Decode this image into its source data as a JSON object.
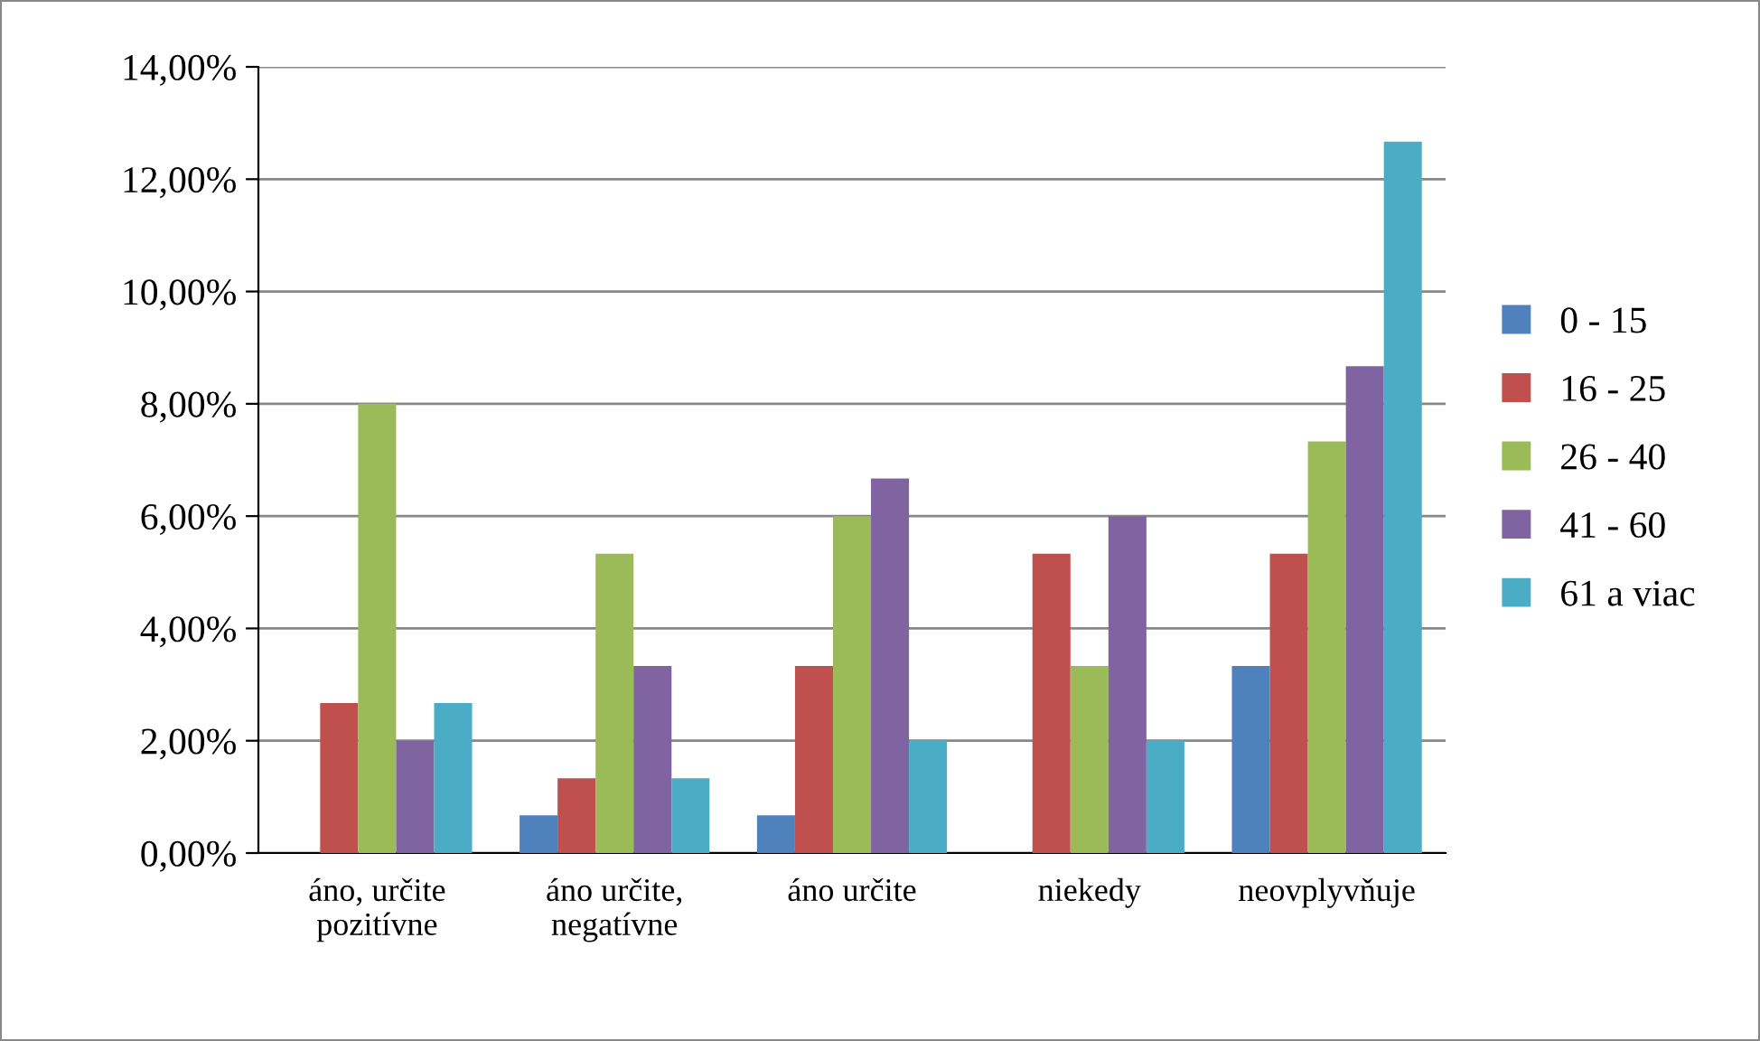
{
  "chart_data": {
    "type": "bar",
    "categories": [
      "áno, určite\npozitívne",
      "áno určite,\nnegatívne",
      "áno určite",
      "niekedy",
      "neovplyvňuje"
    ],
    "series": [
      {
        "name": "0 - 15",
        "color": "#4f81bd",
        "values": [
          0,
          0.67,
          0.67,
          0,
          3.33
        ]
      },
      {
        "name": "16 - 25",
        "color": "#c0504d",
        "values": [
          2.67,
          1.33,
          3.33,
          5.33,
          5.33
        ]
      },
      {
        "name": "26 - 40",
        "color": "#9bbb59",
        "values": [
          8.0,
          5.33,
          6.0,
          3.33,
          7.33
        ]
      },
      {
        "name": "41 - 60",
        "color": "#8064a2",
        "values": [
          2.0,
          3.33,
          6.67,
          6.0,
          8.67
        ]
      },
      {
        "name": "61 a viac",
        "color": "#4bacc6",
        "values": [
          2.67,
          1.33,
          2.0,
          2.0,
          12.67
        ]
      }
    ],
    "ylim": [
      0,
      14
    ],
    "yticks": [
      {
        "value": 0,
        "label": "0,00%"
      },
      {
        "value": 2,
        "label": "2,00%"
      },
      {
        "value": 4,
        "label": "4,00%"
      },
      {
        "value": 6,
        "label": "6,00%"
      },
      {
        "value": 8,
        "label": "8,00%"
      },
      {
        "value": 10,
        "label": "10,00%"
      },
      {
        "value": 12,
        "label": "12,00%"
      },
      {
        "value": 14,
        "label": "14,00%"
      }
    ],
    "grid": "y",
    "legend": "right"
  }
}
